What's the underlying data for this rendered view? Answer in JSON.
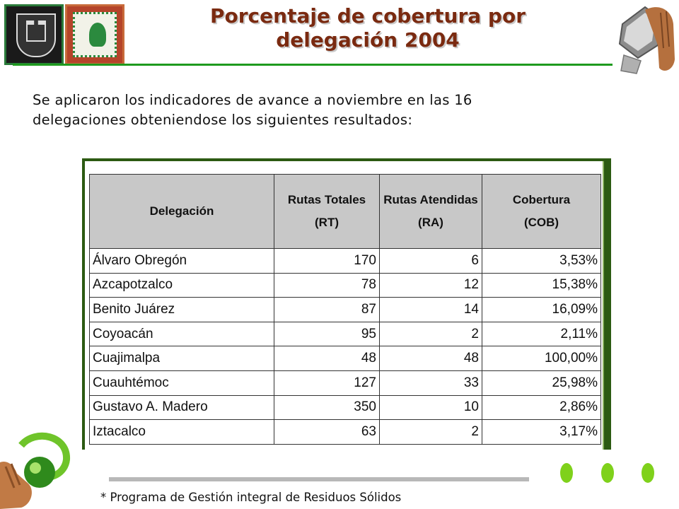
{
  "header": {
    "title_line1": "Porcentaje de cobertura por",
    "title_line2": "delegación 2004"
  },
  "intro": {
    "line1": "Se aplicaron los indicadores de avance a noviembre en las 16",
    "line2": "delegaciones obteniendose los siguientes resultados:"
  },
  "table": {
    "headers": {
      "delegacion": "Delegación",
      "rt_title": "Rutas Totales",
      "rt_sub": "(RT)",
      "ra_title": "Rutas Atendidas",
      "ra_sub": "(RA)",
      "cob_title": "Cobertura",
      "cob_sub": "(COB)"
    },
    "rows": [
      {
        "delegacion": "Álvaro Obregón",
        "rt": "170",
        "ra": "6",
        "cob": "3,53%"
      },
      {
        "delegacion": "Azcapotzalco",
        "rt": "78",
        "ra": "12",
        "cob": "15,38%"
      },
      {
        "delegacion": "Benito Juárez",
        "rt": "87",
        "ra": "14",
        "cob": "16,09%"
      },
      {
        "delegacion": "Coyoacán",
        "rt": "95",
        "ra": "2",
        "cob": "2,11%"
      },
      {
        "delegacion": "Cuajimalpa",
        "rt": "48",
        "ra": "48",
        "cob": "100,00%"
      },
      {
        "delegacion": "Cuauhtémoc",
        "rt": "127",
        "ra": "33",
        "cob": "25,98%"
      },
      {
        "delegacion": "Gustavo A. Madero",
        "rt": "350",
        "ra": "10",
        "cob": "2,86%"
      },
      {
        "delegacion": "Iztacalco",
        "rt": "63",
        "ra": "2",
        "cob": "3,17%"
      }
    ]
  },
  "footnote": "* Programa de Gestión integral de Residuos Sólidos",
  "colors": {
    "title": "#7a2a10",
    "accent_green": "#1e9a1e",
    "frame_green": "#2c5a12",
    "dot_green": "#7fd11b",
    "header_gray": "#c8c8c8"
  },
  "icons": [
    "cdmx-crest-logo",
    "aztec-eagle-logo",
    "paper-hand-icon",
    "globe-hand-icon"
  ]
}
